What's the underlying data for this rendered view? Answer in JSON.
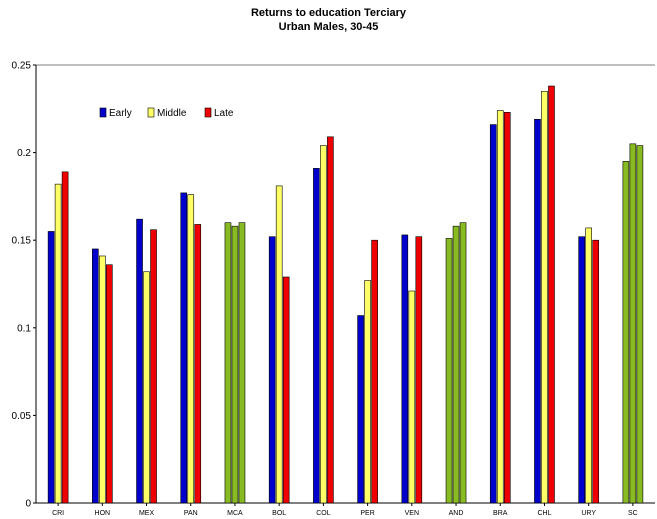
{
  "chart_data": {
    "type": "bar",
    "title": "Returns to education Terciary",
    "subtitle": "Urban Males, 30-45",
    "xlabel": "",
    "ylabel": "",
    "ylim": [
      0,
      0.25
    ],
    "yticks": [
      "0",
      "0.05",
      "0.1",
      "0.15",
      "0.2",
      "0.25"
    ],
    "grid": false,
    "legend_position": "top-left",
    "categories": [
      "CRI",
      "HON",
      "MEX",
      "PAN",
      "MCA",
      "BOL",
      "COL",
      "PER",
      "VEN",
      "AND",
      "BRA",
      "CHL",
      "URY",
      "SC"
    ],
    "series": [
      {
        "name": "Early",
        "color": "#0000cc",
        "values": [
          0.155,
          0.145,
          0.162,
          0.177,
          null,
          0.152,
          0.191,
          0.107,
          0.153,
          null,
          0.216,
          0.219,
          0.152,
          null
        ]
      },
      {
        "name": "Middle",
        "color": "#ffff66",
        "values": [
          0.182,
          0.141,
          0.132,
          0.176,
          null,
          0.181,
          0.204,
          0.127,
          0.121,
          null,
          0.224,
          0.235,
          0.157,
          null
        ]
      },
      {
        "name": "Late",
        "color": "#ee0000",
        "values": [
          0.189,
          0.136,
          0.156,
          0.159,
          null,
          0.129,
          0.209,
          0.15,
          0.152,
          null,
          0.223,
          0.238,
          0.15,
          null
        ]
      }
    ],
    "aggregates": {
      "color": "#88bb22",
      "values": {
        "MCA": [
          0.16,
          0.158,
          0.16
        ],
        "AND": [
          0.151,
          0.158,
          0.16
        ],
        "SC": [
          0.195,
          0.205,
          0.204
        ]
      }
    }
  }
}
